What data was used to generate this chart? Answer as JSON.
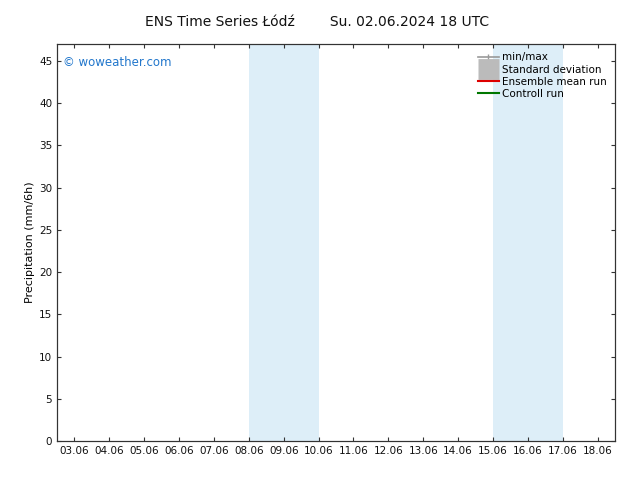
{
  "title_left": "ENS Time Series Łódź",
  "title_right": "Su. 02.06.2024 18 UTC",
  "ylabel": "Precipitation (mm/6h)",
  "ylim": [
    0,
    47
  ],
  "yticks": [
    0,
    5,
    10,
    15,
    20,
    25,
    30,
    35,
    40,
    45
  ],
  "xtick_labels": [
    "03.06",
    "04.06",
    "05.06",
    "06.06",
    "07.06",
    "08.06",
    "09.06",
    "10.06",
    "11.06",
    "12.06",
    "13.06",
    "14.06",
    "15.06",
    "16.06",
    "17.06",
    "18.06"
  ],
  "xtick_positions": [
    0,
    1,
    2,
    3,
    4,
    5,
    6,
    7,
    8,
    9,
    10,
    11,
    12,
    13,
    14,
    15
  ],
  "xlim": [
    -0.5,
    15.5
  ],
  "shaded_regions": [
    {
      "xstart": 5.0,
      "xend": 7.0,
      "color": "#ddeef8"
    },
    {
      "xstart": 12.0,
      "xend": 14.0,
      "color": "#ddeef8"
    }
  ],
  "watermark_text": "© woweather.com",
  "watermark_color": "#2277cc",
  "background_color": "#ffffff",
  "plot_bg_color": "#ffffff",
  "legend_entries": [
    {
      "label": "min/max",
      "color": "#999999",
      "lw": 1.2,
      "style": "line_with_cap"
    },
    {
      "label": "Standard deviation",
      "color": "#bbbbbb",
      "lw": 5,
      "style": "thick"
    },
    {
      "label": "Ensemble mean run",
      "color": "#dd0000",
      "lw": 1.5,
      "style": "line"
    },
    {
      "label": "Controll run",
      "color": "#007700",
      "lw": 1.5,
      "style": "line"
    }
  ],
  "title_fontsize": 10,
  "tick_fontsize": 7.5,
  "ylabel_fontsize": 8,
  "legend_fontsize": 7.5
}
